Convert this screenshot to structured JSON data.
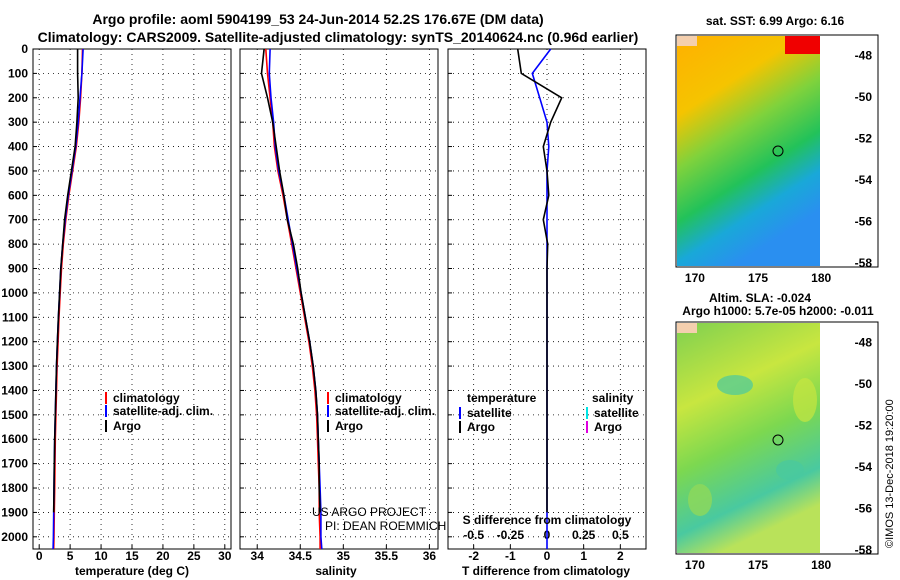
{
  "header": {
    "title_line1": "Argo profile: aoml 5904199_53 24-Jun-2014 52.2S 176.67E (DM data)",
    "title_line2": "Climatology: CARS2009. Satellite-adjusted climatology: synTS_20140624.nc (0.96d earlier)"
  },
  "colors": {
    "climatology": "#ff0000",
    "satellite_adj": "#0000ff",
    "argo": "#000000",
    "satellite_T": "#0000ff",
    "satellite_S": "#00e5e5",
    "argo_S": "#e000e0"
  },
  "depth_ticks": [
    "0",
    "100",
    "200",
    "300",
    "400",
    "500",
    "600",
    "700",
    "800",
    "900",
    "1000",
    "1100",
    "1200",
    "1300",
    "1400",
    "1500",
    "1600",
    "1700",
    "1800",
    "1900",
    "2000"
  ],
  "panels": {
    "temperature": {
      "xlabel": "temperature (deg C)",
      "xticks": [
        "0",
        "5",
        "10",
        "15",
        "20",
        "25",
        "30"
      ],
      "legend": [
        "climatology",
        "satellite-adj. clim.",
        "Argo"
      ]
    },
    "salinity": {
      "xlabel": "salinity",
      "xticks": [
        "34",
        "34.5",
        "35",
        "35.5",
        "36"
      ],
      "legend": [
        "climatology",
        "satellite-adj. clim.",
        "Argo"
      ],
      "credit_line1": "US ARGO PROJECT",
      "credit_line2": "PI: DEAN ROEMMICH"
    },
    "difference": {
      "xlabel": "T difference from climatology",
      "xticks": [
        "-2",
        "-1",
        "0",
        "1",
        "2"
      ],
      "s_label": "S difference from climatology",
      "s_ticks": [
        "-0.5",
        "-0.25",
        "0",
        "0.25",
        "0.5"
      ],
      "legend_T_title": "temperature",
      "legend_S_title": "salinity",
      "legend_T": [
        "satellite",
        "Argo"
      ],
      "legend_S": [
        "satellite",
        "Argo"
      ]
    }
  },
  "maps": {
    "sst": {
      "title": "sat. SST: 6.99 Argo: 6.16",
      "lon_ticks": [
        "170",
        "175",
        "180"
      ],
      "lat_ticks": [
        "-48",
        "-50",
        "-52",
        "-54",
        "-56",
        "-58"
      ]
    },
    "sla": {
      "title1": "Altim. SLA: -0.024",
      "title2": "Argo h1000: 5.7e-05 h2000: -0.011",
      "lon_ticks": [
        "170",
        "175",
        "180"
      ],
      "lat_ticks": [
        "-48",
        "-50",
        "-52",
        "-54",
        "-56",
        "-58"
      ]
    },
    "profile_position": {
      "lon": 176.67,
      "lat": -52.2
    }
  },
  "stamp": "©IMOS 13-Dec-2018 19:20:00",
  "chart_data": [
    {
      "type": "line",
      "title": "",
      "xlabel": "temperature (deg C)",
      "ylabel": "",
      "xlim": [
        -1,
        31
      ],
      "ylim": [
        2050,
        0
      ],
      "series": [
        {
          "name": "climatology",
          "x": [
            7.0,
            6.9,
            6.7,
            6.4,
            6.0,
            5.4,
            4.8,
            4.3,
            3.9,
            3.6,
            3.4,
            3.2,
            3.05,
            2.9,
            2.8,
            2.7,
            2.6,
            2.55,
            2.5,
            2.45,
            2.4,
            2.35
          ],
          "y": [
            0,
            100,
            200,
            300,
            400,
            500,
            600,
            700,
            800,
            900,
            1000,
            1100,
            1200,
            1300,
            1400,
            1500,
            1600,
            1700,
            1800,
            1900,
            2000,
            2050
          ]
        },
        {
          "name": "satellite-adj. clim.",
          "x": [
            7.1,
            6.9,
            6.6,
            6.3,
            5.9,
            5.3,
            4.7,
            4.2,
            3.8,
            3.5,
            3.3,
            3.1,
            2.95,
            2.8,
            2.7,
            2.6,
            2.5,
            2.45,
            2.4,
            2.35,
            2.3,
            2.25
          ],
          "y": [
            0,
            100,
            200,
            300,
            400,
            500,
            600,
            700,
            800,
            900,
            1000,
            1100,
            1200,
            1300,
            1400,
            1500,
            1600,
            1700,
            1800,
            1900,
            2000,
            2050
          ]
        },
        {
          "name": "Argo",
          "x": [
            6.2,
            6.2,
            6.3,
            6.1,
            5.8,
            5.2,
            4.6,
            4.1,
            3.8,
            3.5,
            3.3,
            3.1,
            2.95,
            2.8,
            2.7,
            2.6,
            2.5,
            2.45,
            2.4,
            2.35
          ],
          "y": [
            0,
            100,
            200,
            300,
            400,
            500,
            600,
            700,
            800,
            900,
            1000,
            1100,
            1200,
            1300,
            1400,
            1500,
            1600,
            1700,
            1800,
            1900
          ]
        }
      ]
    },
    {
      "type": "line",
      "title": "",
      "xlabel": "salinity",
      "ylabel": "",
      "xlim": [
        33.8,
        36.1
      ],
      "ylim": [
        2050,
        0
      ],
      "series": [
        {
          "name": "climatology",
          "x": [
            34.1,
            34.12,
            34.15,
            34.18,
            34.2,
            34.24,
            34.3,
            34.35,
            34.4,
            34.45,
            34.5,
            34.55,
            34.6,
            34.64,
            34.67,
            34.69,
            34.7,
            34.71,
            34.72,
            34.72,
            34.73,
            34.73
          ],
          "y": [
            0,
            100,
            200,
            300,
            400,
            500,
            600,
            700,
            800,
            900,
            1000,
            1100,
            1200,
            1300,
            1400,
            1500,
            1600,
            1700,
            1800,
            1900,
            2000,
            2050
          ]
        },
        {
          "name": "satellite-adj. clim.",
          "x": [
            34.15,
            34.14,
            34.16,
            34.19,
            34.21,
            34.25,
            34.31,
            34.36,
            34.41,
            34.46,
            34.51,
            34.56,
            34.61,
            34.65,
            34.68,
            34.7,
            34.71,
            34.72,
            34.73,
            34.74,
            34.74,
            34.75
          ],
          "y": [
            0,
            100,
            200,
            300,
            400,
            500,
            600,
            700,
            800,
            900,
            1000,
            1100,
            1200,
            1300,
            1400,
            1500,
            1600,
            1700,
            1800,
            1900,
            2000,
            2050
          ]
        },
        {
          "name": "Argo",
          "x": [
            34.08,
            34.05,
            34.12,
            34.18,
            34.22,
            34.26,
            34.31,
            34.35,
            34.42,
            34.47,
            34.51,
            34.56,
            34.61,
            34.65,
            34.68,
            34.7,
            34.71,
            34.72,
            34.72,
            34.73
          ],
          "y": [
            0,
            100,
            200,
            300,
            400,
            500,
            600,
            700,
            800,
            900,
            1000,
            1100,
            1200,
            1300,
            1400,
            1500,
            1600,
            1700,
            1800,
            1900
          ]
        }
      ]
    },
    {
      "type": "line",
      "title": "",
      "xlabel": "T difference from climatology",
      "ylabel": "",
      "xlim": [
        -2.7,
        2.7
      ],
      "ylim": [
        2050,
        0
      ],
      "series": [
        {
          "name": "satellite",
          "x": [
            0.1,
            -0.4,
            -0.2,
            0.0,
            0.05,
            0.0,
            0.0,
            0.0,
            0.0,
            0.0,
            0.0,
            0.0,
            0.0,
            0.0,
            0.0,
            0.0,
            0.0,
            0.0,
            0.0,
            0.0,
            0.0,
            0.0
          ],
          "y": [
            0,
            100,
            200,
            300,
            400,
            500,
            600,
            700,
            800,
            900,
            1000,
            1100,
            1200,
            1300,
            1400,
            1500,
            1600,
            1700,
            1800,
            1900,
            2000,
            2050
          ]
        },
        {
          "name": "Argo",
          "x": [
            -0.8,
            -0.7,
            0.4,
            0.1,
            -0.1,
            0.0,
            0.05,
            -0.1,
            0.02,
            0.0,
            0.0,
            0.0,
            0.0,
            0.0,
            0.0,
            0.0,
            0.0,
            0.0,
            0.0,
            0.0
          ],
          "y": [
            0,
            100,
            200,
            300,
            400,
            500,
            600,
            700,
            800,
            900,
            1000,
            1100,
            1200,
            1300,
            1400,
            1500,
            1600,
            1700,
            1800,
            1900
          ]
        }
      ]
    }
  ]
}
